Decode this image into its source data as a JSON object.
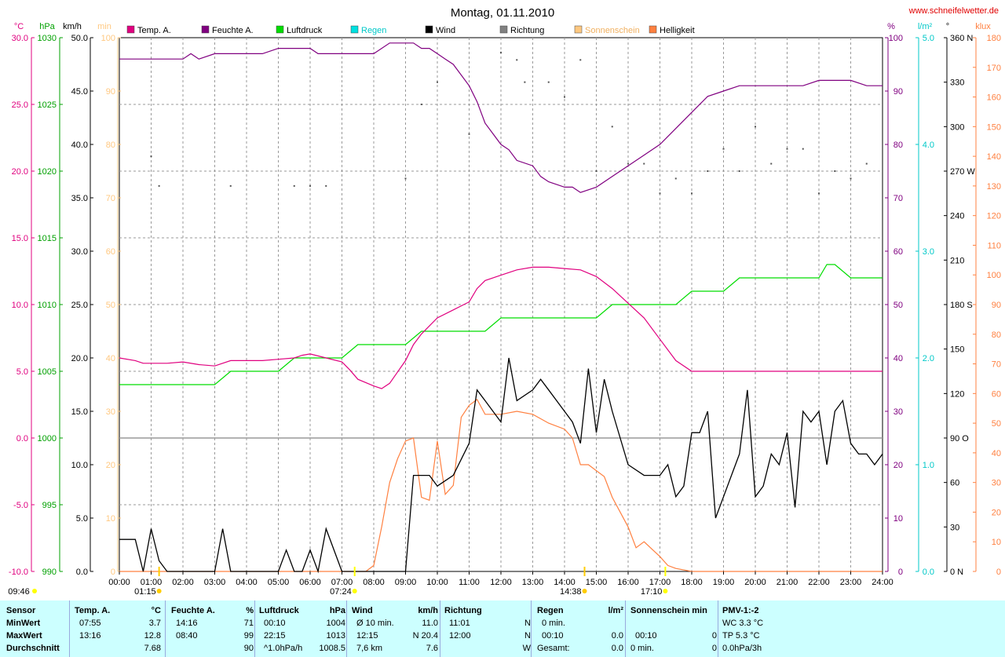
{
  "title": "Montag, 01.11.2010",
  "website": "www.schneifelwetter.de",
  "legend": [
    {
      "name": "Temp. A.",
      "color": "#e0007f"
    },
    {
      "name": "Feuchte A.",
      "color": "#800080"
    },
    {
      "name": "Luftdruck",
      "color": "#00dd00"
    },
    {
      "name": "Regen",
      "color": "#00e0e0"
    },
    {
      "name": "Wind",
      "color": "#000000"
    },
    {
      "name": "Richtung",
      "color": "#808080"
    },
    {
      "name": "Sonnenschein",
      "color": "#ffc880"
    },
    {
      "name": "Helligkeit",
      "color": "#ff8040"
    }
  ],
  "axis_units": {
    "temp": "°C",
    "pressure": "hPa",
    "wind": "km/h",
    "sun": "min",
    "humidity": "%",
    "rain": "l/m²",
    "direction": "°",
    "lux": "klux"
  },
  "axis_ticks": {
    "temp": [
      "30.0",
      "25.0",
      "20.0",
      "15.0",
      "10.0",
      "5.0",
      "0.0",
      "-5.0",
      "-10.0"
    ],
    "pressure": [
      "1030",
      "1025",
      "1020",
      "1015",
      "1010",
      "1005",
      "1000",
      "995",
      "990"
    ],
    "wind": [
      "50.0",
      "45.0",
      "40.0",
      "35.0",
      "30.0",
      "25.0",
      "20.0",
      "15.0",
      "10.0",
      "5.0",
      "0.0"
    ],
    "sun": [
      "100",
      "90",
      "80",
      "70",
      "60",
      "50",
      "40",
      "30",
      "20",
      "10",
      "0"
    ],
    "humidity": [
      "100",
      "90",
      "80",
      "70",
      "60",
      "50",
      "40",
      "30",
      "20",
      "10",
      "0"
    ],
    "rain": [
      "5.0",
      "4.0",
      "3.0",
      "2.0",
      "1.0",
      "0.0"
    ],
    "direction": [
      "360 N",
      "330",
      "300",
      "270 W",
      "240",
      "210",
      "180 S",
      "150",
      "120",
      "90 O",
      "60",
      "30",
      "0 N"
    ],
    "lux": [
      "180",
      "170",
      "160",
      "150",
      "140",
      "130",
      "120",
      "110",
      "100",
      "90",
      "80",
      "70",
      "60",
      "50",
      "40",
      "30",
      "20",
      "10",
      "0"
    ]
  },
  "x_ticks": [
    "00:00",
    "01:00",
    "02:00",
    "03:00",
    "04:00",
    "05:00",
    "06:00",
    "07:00",
    "08:00",
    "09:00",
    "10:00",
    "11:00",
    "12:00",
    "13:00",
    "14:00",
    "15:00",
    "16:00",
    "17:00",
    "18:00",
    "19:00",
    "20:00",
    "21:00",
    "22:00",
    "23:00",
    "24:00"
  ],
  "time_markers": [
    {
      "label": "09:46",
      "t": -3.5,
      "color": "#ffff00"
    },
    {
      "label": "01:15",
      "t": 1.25,
      "color": "#ffcc00"
    },
    {
      "label": "07:24",
      "t": 7.4,
      "color": "#ffff00"
    },
    {
      "label": "14:38",
      "t": 14.63,
      "color": "#ffcc00"
    },
    {
      "label": "17:10",
      "t": 17.17,
      "color": "#ffff00"
    }
  ],
  "chart_data": {
    "type": "line",
    "title": "Montag, 01.11.2010",
    "x_unit": "hours",
    "xlim": [
      0,
      24
    ],
    "grid": true,
    "legend_position": "top",
    "series": [
      {
        "name": "Temp. A.",
        "axis": "temp",
        "ylim": [
          -10,
          30
        ],
        "x": [
          0,
          0.5,
          0.75,
          1,
          1.5,
          2,
          2.5,
          3,
          3.5,
          4,
          4.5,
          5,
          5.5,
          5.75,
          6,
          6.5,
          7,
          7.25,
          7.5,
          8,
          8.25,
          8.5,
          9,
          9.25,
          9.5,
          10,
          10.5,
          11,
          11.25,
          11.5,
          12,
          12.5,
          13,
          13.25,
          13.5,
          14,
          14.5,
          15,
          15.5,
          16,
          16.5,
          17,
          17.5,
          18,
          18.5,
          19,
          19.5,
          20,
          20.5,
          21,
          21.5,
          22,
          22.5,
          23,
          23.5,
          24
        ],
        "y": [
          6.0,
          5.8,
          5.6,
          5.6,
          5.6,
          5.7,
          5.5,
          5.4,
          5.8,
          5.8,
          5.8,
          5.9,
          6.0,
          6.2,
          6.3,
          6.0,
          5.7,
          5.1,
          4.4,
          3.9,
          3.7,
          4.1,
          5.8,
          7.0,
          7.8,
          9.0,
          9.6,
          10.2,
          11.2,
          11.8,
          12.2,
          12.6,
          12.8,
          12.8,
          12.8,
          12.7,
          12.6,
          12.1,
          11.2,
          10.1,
          9.0,
          7.4,
          5.8,
          5.0,
          5.0,
          5.0,
          5.0,
          5.0,
          5.0,
          5.0,
          5.0,
          5.0,
          5.0,
          5.0,
          5.0,
          5.0
        ]
      },
      {
        "name": "Feuchte A.",
        "axis": "humidity",
        "ylim": [
          0,
          100
        ],
        "x": [
          0,
          0.5,
          1,
          1.5,
          2,
          2.25,
          2.5,
          3,
          3.5,
          4,
          4.5,
          5,
          5.5,
          6,
          6.25,
          6.5,
          7,
          7.5,
          8,
          8.5,
          9,
          9.25,
          9.5,
          9.75,
          10,
          10.25,
          10.5,
          11,
          11.25,
          11.5,
          12,
          12.25,
          12.5,
          13,
          13.25,
          13.5,
          14,
          14.25,
          14.5,
          15,
          15.5,
          16,
          16.5,
          17,
          17.5,
          18,
          18.5,
          19,
          19.5,
          20,
          20.5,
          21,
          21.5,
          22,
          22.5,
          23,
          23.5,
          24
        ],
        "y": [
          96,
          96,
          96,
          96,
          96,
          97,
          96,
          97,
          97,
          97,
          97,
          98,
          98,
          98,
          97,
          97,
          97,
          97,
          97,
          99,
          99,
          99,
          98,
          98,
          97,
          96,
          95,
          91,
          88,
          84,
          80,
          79,
          77,
          76,
          74,
          73,
          72,
          72,
          71,
          72,
          74,
          76,
          78,
          80,
          83,
          86,
          89,
          90,
          91,
          91,
          91,
          91,
          91,
          92,
          92,
          92,
          91,
          91
        ]
      },
      {
        "name": "Luftdruck",
        "axis": "pressure",
        "ylim": [
          990,
          1030
        ],
        "x": [
          0,
          3,
          3.5,
          5,
          5.5,
          7,
          7.5,
          9,
          9.5,
          11.5,
          12,
          15,
          15.5,
          17.5,
          18,
          19,
          19.5,
          22,
          22.25,
          22.5,
          23,
          24
        ],
        "y": [
          1004,
          1004,
          1005,
          1005,
          1006,
          1006,
          1007,
          1007,
          1008,
          1008,
          1009,
          1009,
          1010,
          1010,
          1011,
          1011,
          1012,
          1012,
          1013,
          1013,
          1012,
          1012
        ]
      },
      {
        "name": "Wind",
        "axis": "wind",
        "ylim": [
          0,
          50
        ],
        "x": [
          0,
          0.5,
          0.75,
          1,
          1.25,
          1.5,
          2,
          3,
          3.25,
          3.5,
          4,
          5,
          5.25,
          5.5,
          5.75,
          6,
          6.25,
          6.5,
          7,
          8,
          9,
          9.25,
          9.5,
          9.75,
          10,
          10.5,
          11,
          11.25,
          11.5,
          12,
          12.25,
          12.5,
          13,
          13.25,
          13.5,
          14,
          14.25,
          14.5,
          14.75,
          15,
          15.25,
          15.5,
          16,
          16.5,
          17,
          17.25,
          17.5,
          17.75,
          18,
          18.25,
          18.5,
          18.75,
          19,
          19.25,
          19.5,
          19.75,
          20,
          20.25,
          20.5,
          20.75,
          21,
          21.25,
          21.5,
          21.75,
          22,
          22.25,
          22.5,
          22.75,
          23,
          23.25,
          23.5,
          23.75,
          24
        ],
        "y": [
          3,
          3,
          0,
          4,
          1,
          0,
          0,
          0,
          4,
          0,
          0,
          0,
          2,
          0,
          0,
          2,
          0,
          4,
          0,
          0,
          0,
          9,
          9,
          9,
          8,
          9,
          12,
          17,
          16,
          14,
          20,
          16,
          17,
          18,
          17,
          15,
          14,
          12,
          19,
          13,
          18,
          15,
          10,
          9,
          9,
          10,
          7,
          8,
          13,
          13,
          15,
          5,
          7,
          9,
          11,
          17,
          7,
          8,
          11,
          10,
          13,
          6,
          15,
          14,
          15,
          10,
          15,
          16,
          12,
          11,
          11,
          10,
          11
        ]
      },
      {
        "name": "Helligkeit",
        "axis": "lux",
        "ylim": [
          0,
          180
        ],
        "x": [
          0,
          7.75,
          8,
          8.25,
          8.5,
          8.75,
          9,
          9.25,
          9.5,
          9.75,
          10,
          10.25,
          10.5,
          10.75,
          11,
          11.25,
          11.5,
          12,
          12.5,
          13,
          13.5,
          14,
          14.25,
          14.5,
          14.75,
          15,
          15.25,
          15.5,
          16,
          16.25,
          16.5,
          17,
          17.25,
          17.5,
          18,
          24
        ],
        "y": [
          0,
          0,
          2,
          15,
          30,
          38,
          44,
          45,
          25,
          24,
          44,
          26,
          29,
          52,
          56,
          58,
          53,
          53,
          54,
          53,
          50,
          48,
          45,
          36,
          36,
          34,
          32,
          25,
          15,
          8,
          10,
          5,
          2,
          1,
          0,
          0
        ]
      },
      {
        "name": "Richtung",
        "axis": "direction",
        "ylim": [
          0,
          360
        ],
        "type": "scatter",
        "x": [
          1,
          1.25,
          3.5,
          5.5,
          6,
          6.5,
          9,
          9.5,
          10,
          11,
          12,
          12.5,
          12.75,
          13.5,
          14,
          14.5,
          15,
          15.5,
          16,
          16.5,
          17,
          17.5,
          18,
          18.5,
          19,
          19.5,
          20,
          20.5,
          21,
          21.5,
          22,
          22.5,
          23,
          23.5
        ],
        "y": [
          280,
          260,
          260,
          260,
          260,
          260,
          265,
          315,
          330,
          295,
          350,
          345,
          330,
          330,
          320,
          345,
          270,
          300,
          275,
          275,
          255,
          265,
          255,
          270,
          285,
          270,
          300,
          275,
          285,
          285,
          255,
          270,
          265,
          275
        ]
      }
    ]
  },
  "table": {
    "headers": [
      {
        "label": "Sensor",
        "unit": ""
      },
      {
        "label": "Temp. A.",
        "unit": "°C"
      },
      {
        "label": "Feuchte A.",
        "unit": "%"
      },
      {
        "label": "Luftdruck",
        "unit": "hPa"
      },
      {
        "label": "Wind",
        "unit": "km/h"
      },
      {
        "label": "Richtung",
        "unit": ""
      },
      {
        "label": "Regen",
        "unit": "l/m²"
      },
      {
        "label": "Sonnenschein min",
        "unit": ""
      },
      {
        "label": "PMV-1:-2",
        "unit": ""
      }
    ],
    "rows": [
      [
        "MinWert",
        "07:55",
        "3.7",
        "14:16",
        "71",
        "00:10",
        "1004",
        "Ø 10 min.",
        "11.0",
        "11:01",
        "N",
        "0 min.",
        "",
        "",
        "",
        "WC 3.3 °C"
      ],
      [
        "MaxWert",
        "13:16",
        "12.8",
        "08:40",
        "99",
        "22:15",
        "1013",
        "12:15",
        "N 20.4",
        "12:00",
        "N",
        "00:10",
        "0.0",
        "00:10",
        "0",
        "TP 5.3 °C"
      ],
      [
        "Durchschnitt",
        "",
        "7.68",
        "",
        "90",
        "^1.0hPa/h",
        "1008.5",
        "7,6 km",
        "7.6",
        "",
        "W",
        "Gesamt:",
        "0.0",
        "0 min.",
        "0",
        "0.0hPa/3h"
      ]
    ]
  }
}
